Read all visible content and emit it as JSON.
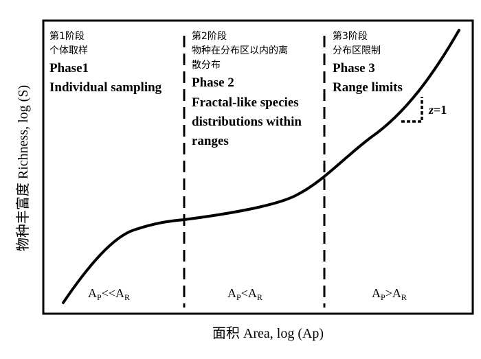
{
  "axes": {
    "x_label": "面积 Area, log (Ap)",
    "y_label": "物种丰富度  Richness, log (S)"
  },
  "phases": [
    {
      "cn_lines": [
        "第1阶段",
        "个体取样"
      ],
      "en_lines": [
        "Phase1",
        "Individual sampling"
      ],
      "region": {
        "base": "A",
        "sub1": "P",
        "rel": "<<A",
        "sub2": "R"
      }
    },
    {
      "cn_lines": [
        "第2阶段",
        "物种在分布区以内的离",
        "散分布"
      ],
      "en_lines": [
        "Phase 2",
        "Fractal-like species",
        "distributions within",
        "ranges"
      ],
      "region": {
        "base": "A",
        "sub1": "P",
        "rel": "<A",
        "sub2": "R"
      }
    },
    {
      "cn_lines": [
        "第3阶段",
        "分布区限制"
      ],
      "en_lines": [
        "Phase 3",
        "Range limits"
      ],
      "region": {
        "base": "A",
        "sub1": "P",
        "rel": ">A",
        "sub2": "R"
      }
    }
  ],
  "slope_label": {
    "var": "z",
    "rest": "=1"
  }
}
